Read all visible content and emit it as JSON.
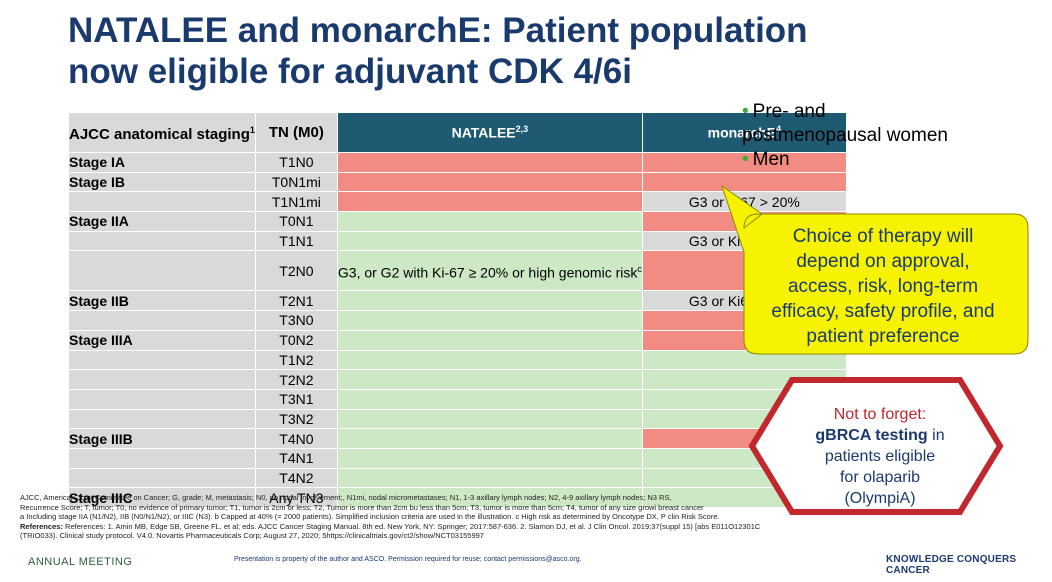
{
  "title": {
    "line1": "NATALEE and monarchE: Patient population",
    "line2": "now eligible for adjuvant CDK 4/6i"
  },
  "table": {
    "headers": {
      "staging": "AJCC anatomical staging",
      "staging_sup": "1",
      "tn": "TN (M0)",
      "natalee": "NATALEE",
      "natalee_sup": "2,3",
      "monarche": "monarchE",
      "monarche_sup": "4"
    },
    "natalee_note": "G3, or G2 with Ki-67 ≥ 20% or high genomic risk",
    "natalee_note_sup": "c",
    "rows": [
      {
        "stage": "Stage IA",
        "tn": "T1N0",
        "natalee": "red",
        "monarche": "red",
        "monarche_text": ""
      },
      {
        "stage": "Stage IB",
        "tn": "T0N1mi",
        "natalee": "red",
        "monarche": "red",
        "monarche_text": ""
      },
      {
        "stage": "",
        "tn": "T1N1mi",
        "natalee": "red",
        "monarche": "gray",
        "monarche_text": "G3 or Ki67 > 20%"
      },
      {
        "stage": "Stage IIA",
        "tn": "T0N1",
        "natalee": "green",
        "monarche": "red",
        "monarche_text": ""
      },
      {
        "stage": "",
        "tn": "T1N1",
        "natalee": "green",
        "monarche": "gray",
        "monarche_text": "G3 or Ki67 > 20%"
      },
      {
        "stage": "",
        "tn": "T2N0",
        "natalee": "note",
        "monarche": "red",
        "monarche_text": ""
      },
      {
        "stage": "Stage IIB",
        "tn": "T2N1",
        "natalee": "green",
        "monarche": "gray",
        "monarche_text": "G3 or Ki67 > 20%"
      },
      {
        "stage": "",
        "tn": "T3N0",
        "natalee": "green",
        "monarche": "red",
        "monarche_text": ""
      },
      {
        "stage": "Stage IIIA",
        "tn": "T0N2",
        "natalee": "green",
        "monarche": "red",
        "monarche_text": ""
      },
      {
        "stage": "",
        "tn": "T1N2",
        "natalee": "green",
        "monarche": "green",
        "monarche_text": ""
      },
      {
        "stage": "",
        "tn": "T2N2",
        "natalee": "green",
        "monarche": "green",
        "monarche_text": ""
      },
      {
        "stage": "",
        "tn": "T3N1",
        "natalee": "green",
        "monarche": "green",
        "monarche_text": ""
      },
      {
        "stage": "",
        "tn": "T3N2",
        "natalee": "green",
        "monarche": "green",
        "monarche_text": ""
      },
      {
        "stage": "Stage IIIB",
        "tn": "T4N0",
        "natalee": "green",
        "monarche": "red",
        "monarche_text": ""
      },
      {
        "stage": "",
        "tn": "T4N1",
        "natalee": "green",
        "monarche": "green",
        "monarche_text": ""
      },
      {
        "stage": "",
        "tn": "T4N2",
        "natalee": "green",
        "monarche": "green",
        "monarche_text": ""
      },
      {
        "stage": "Stage IIIC",
        "tn": "Any TN3",
        "natalee": "green",
        "monarche": "green",
        "monarche_text": ""
      }
    ]
  },
  "bullets": {
    "item1_line1": "Pre- and",
    "item1_line2": "postmenopausal women",
    "item2": "Men"
  },
  "callout": {
    "lines": [
      "Choice of therapy will",
      "depend on approval,",
      "access, risk, long-term",
      "efficacy, safety profile, and",
      "patient preference"
    ]
  },
  "hexagon": {
    "line1": "Not to forget:",
    "bold": "gBRCA testing",
    "after_bold": " in",
    "line3": "patients eligible",
    "line4": "for olaparib",
    "line5": "(OlympiA)"
  },
  "footnotes": {
    "line1": "AJCC, American Joint Committee on Cancer; G, grade; M, metastasis; N0, no nodal involvement;, N1mi, nodal micrometastases; N1, 1-3 axillary lymph nodes; N2, 4-9 axillary lymph nodes; N3",
    "line1_tail": "RS,",
    "line2": "Recurrence Score; T, tumor; T0, no evidence of primary tumor; T1, tumor is 2cm or less; T2, Tumor is more than 2cm bu less than 5cm; T3, tumor is more than 5cm; T4, tumor of any size growi",
    "line2_tail": "breast cancer",
    "line3": "a Including stage IIA (N1/N2), IIB (N0/N1/N2), or IIIC (N3). b Capped at 40% (= 2000 patients). Simplified inclusion criteria are used in the illustration. c High risk as determined by Oncotype DX, P",
    "line3_tail": "clin Risk Score.",
    "line4": "References: 1. Amin MB, Edge SB, Greene FL, et al; eds. AJCC Cancer Staging Manual. 8th ed. New York, NY: Springer; 2017:587-636. 2. Slamon DJ, et al. J Clin Oncol. 2019;37(suppl 15) [abs",
    "line4_tail": "E011O12301C",
    "line5": "(TRIO033). Clinical study protocol. V4.0. Novartis Pharmaceuticals Corp; August 27, 2020; 5https://clinicaltrials.gov/ct2/show/NCT03155997"
  },
  "bottom": {
    "left": "ANNUAL MEETING",
    "presentation": "Presentation is property of the author and ASCO. Permission required for reuse; contact permissions@asco.org.",
    "right": "KNOWLEDGE CONQUERS CANCER"
  },
  "colors": {
    "title": "#1a3a6e",
    "header": "#1e5a72",
    "red_cell": "#f28b82",
    "green_cell": "#cce8c4",
    "gray_cell": "#d9d9d9",
    "callout_fill": "#f7f300",
    "hexagon_border": "#c0282d"
  }
}
